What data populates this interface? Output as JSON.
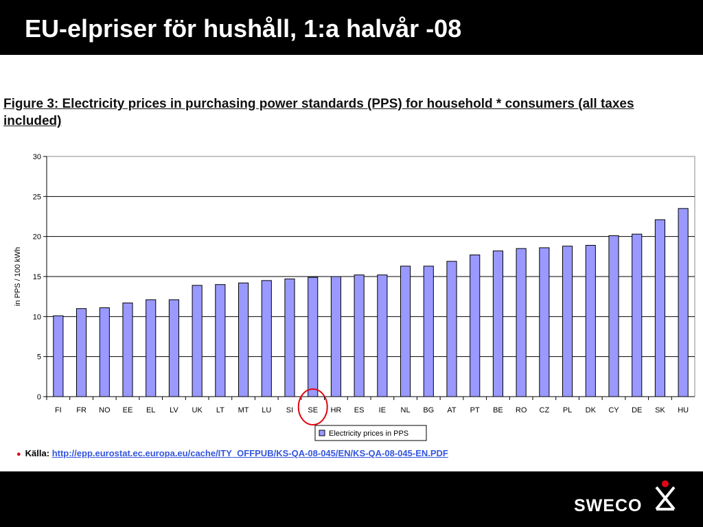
{
  "slide": {
    "title": "EU-elpriser för hushåll, 1:a halvår -08"
  },
  "figure": {
    "caption": "Figure 3: Electricity prices in purchasing power standards (PPS) for household * consumers (all taxes included)"
  },
  "chart_data": {
    "type": "bar",
    "categories": [
      "FI",
      "FR",
      "NO",
      "EE",
      "EL",
      "LV",
      "UK",
      "LT",
      "MT",
      "LU",
      "SI",
      "SE",
      "HR",
      "ES",
      "IE",
      "NL",
      "BG",
      "AT",
      "PT",
      "BE",
      "RO",
      "CZ",
      "PL",
      "DK",
      "CY",
      "DE",
      "SK",
      "HU"
    ],
    "series": [
      {
        "name": "Electricity prices in PPS",
        "values": [
          10.1,
          11.0,
          11.1,
          11.7,
          12.1,
          12.1,
          13.9,
          14.0,
          14.2,
          14.5,
          14.7,
          14.9,
          15.0,
          15.2,
          15.2,
          16.3,
          16.3,
          16.9,
          17.7,
          18.2,
          18.5,
          18.6,
          18.8,
          18.9,
          20.1,
          20.3,
          22.1,
          23.5
        ]
      }
    ],
    "ylabel": "in PPS / 100 kWh",
    "ylim": [
      0,
      30
    ],
    "yticks": [
      0,
      5,
      10,
      15,
      20,
      25,
      30
    ],
    "grid": true,
    "legend_position": "bottom-center",
    "highlighted_category": "SE",
    "bar_color": "#9999ff",
    "highlight_color": "#e30613"
  },
  "source": {
    "label": "Källa:",
    "link": "http://epp.eurostat.ec.europa.eu/cache/ITY_OFFPUB/KS-QA-08-045/EN/KS-QA-08-045-EN.PDF"
  },
  "logo": {
    "text": "SWECO",
    "accent_color": "#e30613"
  }
}
